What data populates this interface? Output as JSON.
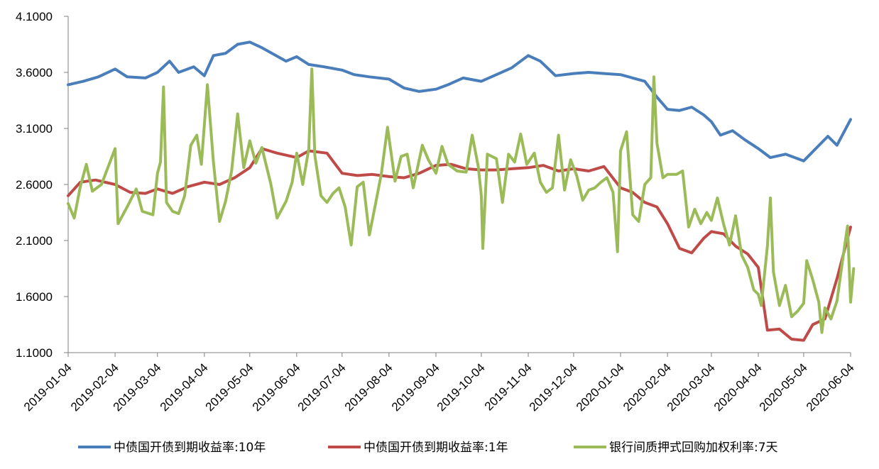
{
  "chart_data": {
    "type": "line",
    "title": "",
    "xlabel": "",
    "ylabel": "",
    "x_start": "2019-01-04",
    "x_end": "2020-06-04",
    "ylim": [
      1.1,
      4.1
    ],
    "yticks": [
      1.1,
      1.6,
      2.1,
      2.6,
      3.1,
      3.6,
      4.1
    ],
    "ytick_labels": [
      "1.1000",
      "1.6000",
      "2.1000",
      "2.6000",
      "3.1000",
      "3.6000",
      "4.1000"
    ],
    "xtick_labels": [
      "2019-01-04",
      "2019-02-04",
      "2019-03-04",
      "2019-04-04",
      "2019-05-04",
      "2019-06-04",
      "2019-07-04",
      "2019-08-04",
      "2019-09-04",
      "2019-10-04",
      "2019-11-04",
      "2019-12-04",
      "2020-01-04",
      "2020-02-04",
      "2020-03-04",
      "2020-04-04",
      "2020-05-04",
      "2020-06-04"
    ],
    "grid": false,
    "legend_position": "bottom",
    "series": [
      {
        "name": "中债国开债到期收益率:10年",
        "color": "#4A7EBB",
        "points": [
          [
            "2019-01-04",
            3.49
          ],
          [
            "2019-01-14",
            3.52
          ],
          [
            "2019-01-24",
            3.56
          ],
          [
            "2019-02-04",
            3.63
          ],
          [
            "2019-02-12",
            3.56
          ],
          [
            "2019-02-24",
            3.55
          ],
          [
            "2019-03-04",
            3.6
          ],
          [
            "2019-03-12",
            3.7
          ],
          [
            "2019-03-18",
            3.6
          ],
          [
            "2019-03-28",
            3.65
          ],
          [
            "2019-04-04",
            3.57
          ],
          [
            "2019-04-10",
            3.75
          ],
          [
            "2019-04-18",
            3.77
          ],
          [
            "2019-04-26",
            3.85
          ],
          [
            "2019-05-04",
            3.87
          ],
          [
            "2019-05-12",
            3.82
          ],
          [
            "2019-05-20",
            3.76
          ],
          [
            "2019-05-28",
            3.7
          ],
          [
            "2019-06-04",
            3.74
          ],
          [
            "2019-06-12",
            3.67
          ],
          [
            "2019-06-22",
            3.65
          ],
          [
            "2019-07-04",
            3.62
          ],
          [
            "2019-07-12",
            3.58
          ],
          [
            "2019-07-22",
            3.56
          ],
          [
            "2019-08-04",
            3.54
          ],
          [
            "2019-08-14",
            3.46
          ],
          [
            "2019-08-24",
            3.43
          ],
          [
            "2019-09-04",
            3.45
          ],
          [
            "2019-09-12",
            3.49
          ],
          [
            "2019-09-22",
            3.55
          ],
          [
            "2019-10-04",
            3.52
          ],
          [
            "2019-10-14",
            3.58
          ],
          [
            "2019-10-24",
            3.64
          ],
          [
            "2019-11-04",
            3.75
          ],
          [
            "2019-11-12",
            3.7
          ],
          [
            "2019-11-22",
            3.57
          ],
          [
            "2019-12-04",
            3.59
          ],
          [
            "2019-12-14",
            3.6
          ],
          [
            "2019-12-24",
            3.59
          ],
          [
            "2020-01-04",
            3.58
          ],
          [
            "2020-01-12",
            3.55
          ],
          [
            "2020-01-20",
            3.52
          ],
          [
            "2020-01-28",
            3.38
          ],
          [
            "2020-02-04",
            3.27
          ],
          [
            "2020-02-12",
            3.26
          ],
          [
            "2020-02-20",
            3.29
          ],
          [
            "2020-02-28",
            3.22
          ],
          [
            "2020-03-04",
            3.16
          ],
          [
            "2020-03-10",
            3.04
          ],
          [
            "2020-03-18",
            3.08
          ],
          [
            "2020-03-26",
            3.0
          ],
          [
            "2020-04-04",
            2.92
          ],
          [
            "2020-04-12",
            2.84
          ],
          [
            "2020-04-22",
            2.87
          ],
          [
            "2020-05-04",
            2.81
          ],
          [
            "2020-05-12",
            2.92
          ],
          [
            "2020-05-20",
            3.03
          ],
          [
            "2020-05-26",
            2.95
          ],
          [
            "2020-06-04",
            3.18
          ]
        ]
      },
      {
        "name": "中债国开债到期收益率:1年",
        "color": "#BE4B48",
        "points": [
          [
            "2019-01-04",
            2.5
          ],
          [
            "2019-01-12",
            2.62
          ],
          [
            "2019-01-22",
            2.64
          ],
          [
            "2019-02-04",
            2.6
          ],
          [
            "2019-02-14",
            2.53
          ],
          [
            "2019-02-24",
            2.52
          ],
          [
            "2019-03-04",
            2.56
          ],
          [
            "2019-03-14",
            2.52
          ],
          [
            "2019-03-24",
            2.58
          ],
          [
            "2019-04-04",
            2.62
          ],
          [
            "2019-04-14",
            2.6
          ],
          [
            "2019-04-24",
            2.66
          ],
          [
            "2019-05-04",
            2.75
          ],
          [
            "2019-05-12",
            2.92
          ],
          [
            "2019-05-22",
            2.88
          ],
          [
            "2019-06-04",
            2.84
          ],
          [
            "2019-06-12",
            2.9
          ],
          [
            "2019-06-24",
            2.88
          ],
          [
            "2019-07-04",
            2.7
          ],
          [
            "2019-07-14",
            2.68
          ],
          [
            "2019-07-24",
            2.69
          ],
          [
            "2019-08-04",
            2.67
          ],
          [
            "2019-08-14",
            2.66
          ],
          [
            "2019-08-24",
            2.7
          ],
          [
            "2019-09-04",
            2.77
          ],
          [
            "2019-09-14",
            2.78
          ],
          [
            "2019-09-24",
            2.74
          ],
          [
            "2019-10-04",
            2.73
          ],
          [
            "2019-10-14",
            2.73
          ],
          [
            "2019-10-24",
            2.74
          ],
          [
            "2019-11-04",
            2.75
          ],
          [
            "2019-11-14",
            2.77
          ],
          [
            "2019-11-24",
            2.72
          ],
          [
            "2019-12-04",
            2.74
          ],
          [
            "2019-12-14",
            2.72
          ],
          [
            "2019-12-24",
            2.76
          ],
          [
            "2020-01-04",
            2.57
          ],
          [
            "2020-01-12",
            2.53
          ],
          [
            "2020-01-20",
            2.44
          ],
          [
            "2020-01-28",
            2.4
          ],
          [
            "2020-02-04",
            2.25
          ],
          [
            "2020-02-12",
            2.03
          ],
          [
            "2020-02-20",
            1.99
          ],
          [
            "2020-02-28",
            2.12
          ],
          [
            "2020-03-04",
            2.18
          ],
          [
            "2020-03-12",
            2.16
          ],
          [
            "2020-03-20",
            2.05
          ],
          [
            "2020-03-28",
            1.98
          ],
          [
            "2020-04-04",
            1.86
          ],
          [
            "2020-04-10",
            1.3
          ],
          [
            "2020-04-18",
            1.31
          ],
          [
            "2020-04-26",
            1.22
          ],
          [
            "2020-05-04",
            1.21
          ],
          [
            "2020-05-10",
            1.35
          ],
          [
            "2020-05-18",
            1.4
          ],
          [
            "2020-05-26",
            1.76
          ],
          [
            "2020-06-04",
            2.22
          ]
        ]
      },
      {
        "name": "银行间质押式回购加权利率:7天",
        "color": "#9BBB59",
        "points": [
          [
            "2019-01-04",
            2.43
          ],
          [
            "2019-01-08",
            2.3
          ],
          [
            "2019-01-12",
            2.58
          ],
          [
            "2019-01-16",
            2.78
          ],
          [
            "2019-01-20",
            2.54
          ],
          [
            "2019-01-26",
            2.6
          ],
          [
            "2019-02-04",
            2.92
          ],
          [
            "2019-02-06",
            2.25
          ],
          [
            "2019-02-12",
            2.4
          ],
          [
            "2019-02-18",
            2.56
          ],
          [
            "2019-02-22",
            2.36
          ],
          [
            "2019-03-01",
            2.33
          ],
          [
            "2019-03-04",
            2.7
          ],
          [
            "2019-03-06",
            2.8
          ],
          [
            "2019-03-08",
            3.47
          ],
          [
            "2019-03-10",
            2.44
          ],
          [
            "2019-03-14",
            2.36
          ],
          [
            "2019-03-18",
            2.34
          ],
          [
            "2019-03-22",
            2.5
          ],
          [
            "2019-03-26",
            2.95
          ],
          [
            "2019-03-30",
            3.04
          ],
          [
            "2019-04-02",
            2.78
          ],
          [
            "2019-04-06",
            3.49
          ],
          [
            "2019-04-10",
            2.8
          ],
          [
            "2019-04-14",
            2.27
          ],
          [
            "2019-04-18",
            2.45
          ],
          [
            "2019-04-22",
            2.72
          ],
          [
            "2019-04-26",
            3.23
          ],
          [
            "2019-04-30",
            2.75
          ],
          [
            "2019-05-04",
            2.99
          ],
          [
            "2019-05-08",
            2.79
          ],
          [
            "2019-05-12",
            2.93
          ],
          [
            "2019-05-18",
            2.6
          ],
          [
            "2019-05-22",
            2.3
          ],
          [
            "2019-05-28",
            2.45
          ],
          [
            "2019-06-01",
            2.62
          ],
          [
            "2019-06-04",
            2.88
          ],
          [
            "2019-06-08",
            2.6
          ],
          [
            "2019-06-12",
            2.92
          ],
          [
            "2019-06-14",
            3.63
          ],
          [
            "2019-06-16",
            2.86
          ],
          [
            "2019-06-20",
            2.5
          ],
          [
            "2019-06-24",
            2.44
          ],
          [
            "2019-06-28",
            2.52
          ],
          [
            "2019-07-02",
            2.57
          ],
          [
            "2019-07-06",
            2.4
          ],
          [
            "2019-07-10",
            2.06
          ],
          [
            "2019-07-14",
            2.58
          ],
          [
            "2019-07-18",
            2.62
          ],
          [
            "2019-07-22",
            2.15
          ],
          [
            "2019-07-26",
            2.42
          ],
          [
            "2019-07-30",
            2.7
          ],
          [
            "2019-08-03",
            3.11
          ],
          [
            "2019-08-08",
            2.63
          ],
          [
            "2019-08-12",
            2.85
          ],
          [
            "2019-08-16",
            2.87
          ],
          [
            "2019-08-20",
            2.57
          ],
          [
            "2019-08-26",
            2.95
          ],
          [
            "2019-08-30",
            2.82
          ],
          [
            "2019-09-04",
            2.7
          ],
          [
            "2019-09-08",
            2.94
          ],
          [
            "2019-09-12",
            2.78
          ],
          [
            "2019-09-18",
            2.72
          ],
          [
            "2019-09-24",
            2.71
          ],
          [
            "2019-09-28",
            3.04
          ],
          [
            "2019-10-02",
            2.76
          ],
          [
            "2019-10-04",
            2.5
          ],
          [
            "2019-10-05",
            2.03
          ],
          [
            "2019-10-08",
            2.87
          ],
          [
            "2019-10-14",
            2.83
          ],
          [
            "2019-10-18",
            2.44
          ],
          [
            "2019-10-22",
            2.87
          ],
          [
            "2019-10-26",
            2.8
          ],
          [
            "2019-10-30",
            3.05
          ],
          [
            "2019-11-03",
            2.78
          ],
          [
            "2019-11-08",
            2.88
          ],
          [
            "2019-11-12",
            2.62
          ],
          [
            "2019-11-16",
            2.53
          ],
          [
            "2019-11-20",
            2.57
          ],
          [
            "2019-11-24",
            3.04
          ],
          [
            "2019-11-28",
            2.55
          ],
          [
            "2019-12-02",
            2.82
          ],
          [
            "2019-12-06",
            2.68
          ],
          [
            "2019-12-10",
            2.46
          ],
          [
            "2019-12-14",
            2.55
          ],
          [
            "2019-12-18",
            2.57
          ],
          [
            "2019-12-22",
            2.62
          ],
          [
            "2019-12-26",
            2.66
          ],
          [
            "2019-12-30",
            2.53
          ],
          [
            "2020-01-02",
            2.0
          ],
          [
            "2020-01-04",
            2.9
          ],
          [
            "2020-01-08",
            3.07
          ],
          [
            "2020-01-12",
            2.33
          ],
          [
            "2020-01-16",
            2.27
          ],
          [
            "2020-01-20",
            2.6
          ],
          [
            "2020-01-24",
            2.66
          ],
          [
            "2020-01-26",
            3.56
          ],
          [
            "2020-01-28",
            2.97
          ],
          [
            "2020-02-01",
            2.66
          ],
          [
            "2020-02-04",
            2.69
          ],
          [
            "2020-02-10",
            2.69
          ],
          [
            "2020-02-14",
            2.72
          ],
          [
            "2020-02-18",
            2.22
          ],
          [
            "2020-02-22",
            2.38
          ],
          [
            "2020-02-26",
            2.25
          ],
          [
            "2020-03-01",
            2.35
          ],
          [
            "2020-03-04",
            2.28
          ],
          [
            "2020-03-08",
            2.48
          ],
          [
            "2020-03-12",
            2.25
          ],
          [
            "2020-03-16",
            2.06
          ],
          [
            "2020-03-20",
            2.32
          ],
          [
            "2020-03-24",
            1.97
          ],
          [
            "2020-03-28",
            1.86
          ],
          [
            "2020-04-01",
            1.66
          ],
          [
            "2020-04-04",
            1.62
          ],
          [
            "2020-04-06",
            1.52
          ],
          [
            "2020-04-10",
            2.05
          ],
          [
            "2020-04-12",
            2.48
          ],
          [
            "2020-04-14",
            1.82
          ],
          [
            "2020-04-18",
            1.52
          ],
          [
            "2020-04-22",
            1.7
          ],
          [
            "2020-04-26",
            1.42
          ],
          [
            "2020-04-30",
            1.47
          ],
          [
            "2020-05-04",
            1.54
          ],
          [
            "2020-05-06",
            1.92
          ],
          [
            "2020-05-10",
            1.75
          ],
          [
            "2020-05-14",
            1.55
          ],
          [
            "2020-05-16",
            1.28
          ],
          [
            "2020-05-18",
            1.5
          ],
          [
            "2020-05-22",
            1.4
          ],
          [
            "2020-05-26",
            1.56
          ],
          [
            "2020-05-30",
            1.95
          ],
          [
            "2020-06-02",
            2.23
          ],
          [
            "2020-06-04",
            1.55
          ],
          [
            "2020-06-06",
            1.85
          ]
        ]
      }
    ]
  }
}
